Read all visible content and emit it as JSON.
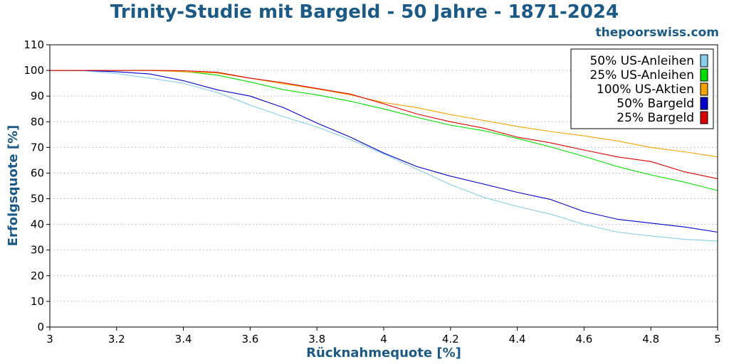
{
  "header": {
    "title": "Trinity-Studie mit Bargeld - 50 Jahre - 1871-2024",
    "site": "thepoorswiss.com"
  },
  "colors": {
    "text_accent": "#1b5a86"
  },
  "chart_data": {
    "type": "line",
    "title": "Trinity-Studie mit Bargeld - 50 Jahre - 1871-2024",
    "xlabel": "Rücknahmequote [%]",
    "ylabel": "Erfolgsquote [%]",
    "xlim": [
      3,
      5
    ],
    "ylim": [
      0,
      110
    ],
    "xticks": [
      "3",
      "3.2",
      "3.4",
      "3.6",
      "3.8",
      "4",
      "4.2",
      "4.4",
      "4.6",
      "4.8",
      "5"
    ],
    "yticks": [
      "0",
      "10",
      "20",
      "30",
      "40",
      "50",
      "60",
      "70",
      "80",
      "90",
      "100",
      "110"
    ],
    "grid": "y-dotted",
    "legend": "top-right",
    "x": [
      3.0,
      3.1,
      3.2,
      3.3,
      3.4,
      3.5,
      3.6,
      3.7,
      3.8,
      3.9,
      4.0,
      4.1,
      4.2,
      4.3,
      4.4,
      4.5,
      4.6,
      4.7,
      4.8,
      4.9,
      5.0
    ],
    "series": [
      {
        "name": "50% US-Anleihen",
        "color": "#87ceeb",
        "values": [
          100,
          99.9,
          98.8,
          97.0,
          95.0,
          91.5,
          86.5,
          82.0,
          78.0,
          73.0,
          67.5,
          61.5,
          55.5,
          50.5,
          47.0,
          44.0,
          40.0,
          37.0,
          35.5,
          34.2,
          33.5
        ]
      },
      {
        "name": "25% US-Anleihen",
        "color": "#00dd00",
        "values": [
          100,
          100,
          100,
          100,
          99.6,
          98.2,
          95.5,
          92.5,
          90.5,
          88.0,
          85.0,
          81.7,
          78.7,
          76.5,
          73.5,
          70.2,
          66.5,
          62.5,
          59.3,
          56.5,
          53.2
        ]
      },
      {
        "name": "100% US-Aktien",
        "color": "#f5a300",
        "values": [
          100,
          100,
          100,
          100,
          99.5,
          99.0,
          97.0,
          94.8,
          92.8,
          90.5,
          87.5,
          85.5,
          82.8,
          80.5,
          78.2,
          76.2,
          74.5,
          72.5,
          70.0,
          68.3,
          66.3
        ]
      },
      {
        "name": "50% Bargeld",
        "color": "#0000cc",
        "values": [
          100,
          100,
          99.5,
          98.6,
          96.0,
          92.5,
          90.0,
          85.5,
          79.5,
          74.0,
          67.8,
          62.5,
          58.8,
          55.7,
          52.5,
          49.7,
          45.0,
          42.0,
          40.5,
          39.0,
          37.0
        ]
      },
      {
        "name": "25% Bargeld",
        "color": "#dd0000",
        "values": [
          100,
          100,
          100,
          100,
          99.9,
          99.3,
          97.0,
          95.2,
          93.0,
          90.8,
          87.0,
          83.0,
          80.0,
          77.5,
          74.0,
          71.8,
          69.0,
          66.3,
          64.5,
          60.5,
          57.8
        ]
      }
    ]
  }
}
